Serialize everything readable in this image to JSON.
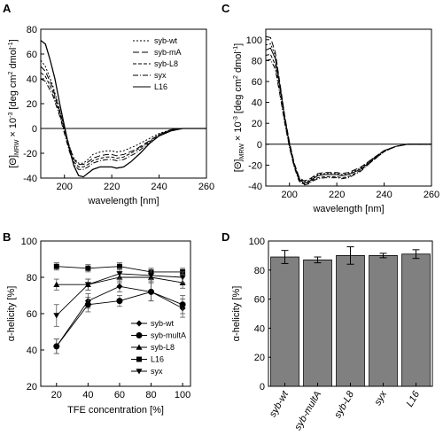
{
  "figure": {
    "panel_labels": [
      "A",
      "B",
      "C",
      "D"
    ]
  },
  "chart_data": [
    {
      "panel": "A",
      "type": "line",
      "xlabel": "wavelength [nm]",
      "ylabel_parts": [
        "[Θ]",
        "MRW",
        " × 10",
        "-3",
        " [deg cm",
        "2",
        " dmol",
        "-1",
        "]"
      ],
      "xlim": [
        190,
        260
      ],
      "ylim": [
        -40,
        80
      ],
      "xticks": [
        200,
        220,
        240,
        260
      ],
      "yticks": [
        -40,
        -20,
        0,
        20,
        40,
        60,
        80
      ],
      "zero_line": true,
      "legend_position": "top-right",
      "series": [
        {
          "name": "syb-wt",
          "dash": "2,2",
          "points": [
            [
              190,
              55
            ],
            [
              192,
              50
            ],
            [
              195,
              35
            ],
            [
              198,
              15
            ],
            [
              200,
              0
            ],
            [
              202,
              -14
            ],
            [
              204,
              -24
            ],
            [
              206,
              -28
            ],
            [
              208,
              -28
            ],
            [
              210,
              -25
            ],
            [
              212,
              -21
            ],
            [
              215,
              -19
            ],
            [
              218,
              -18
            ],
            [
              220,
              -18
            ],
            [
              222,
              -19
            ],
            [
              225,
              -18
            ],
            [
              230,
              -14
            ],
            [
              235,
              -9
            ],
            [
              240,
              -4
            ],
            [
              245,
              -1
            ],
            [
              250,
              0
            ],
            [
              260,
              0
            ]
          ]
        },
        {
          "name": "syb-mA",
          "dash": "7,3",
          "points": [
            [
              190,
              50
            ],
            [
              192,
              46
            ],
            [
              195,
              33
            ],
            [
              198,
              14
            ],
            [
              200,
              0
            ],
            [
              202,
              -14
            ],
            [
              204,
              -25
            ],
            [
              206,
              -29
            ],
            [
              208,
              -29
            ],
            [
              210,
              -27
            ],
            [
              212,
              -24
            ],
            [
              215,
              -22
            ],
            [
              218,
              -21
            ],
            [
              220,
              -21
            ],
            [
              222,
              -22
            ],
            [
              225,
              -21
            ],
            [
              230,
              -17
            ],
            [
              235,
              -11
            ],
            [
              240,
              -5
            ],
            [
              245,
              -1
            ],
            [
              250,
              0
            ],
            [
              260,
              0
            ]
          ]
        },
        {
          "name": "syb-L8",
          "dash": "4,2",
          "points": [
            [
              190,
              45
            ],
            [
              192,
              42
            ],
            [
              195,
              30
            ],
            [
              198,
              12
            ],
            [
              200,
              -2
            ],
            [
              202,
              -16
            ],
            [
              204,
              -27
            ],
            [
              206,
              -31
            ],
            [
              208,
              -31
            ],
            [
              210,
              -29
            ],
            [
              212,
              -26
            ],
            [
              215,
              -24
            ],
            [
              218,
              -23
            ],
            [
              220,
              -23
            ],
            [
              222,
              -24
            ],
            [
              225,
              -23
            ],
            [
              230,
              -18
            ],
            [
              235,
              -12
            ],
            [
              240,
              -5
            ],
            [
              245,
              -1
            ],
            [
              250,
              0
            ],
            [
              260,
              0
            ]
          ]
        },
        {
          "name": "syx",
          "dash": "6,2,1,2",
          "points": [
            [
              190,
              40
            ],
            [
              192,
              38
            ],
            [
              195,
              27
            ],
            [
              198,
              10
            ],
            [
              200,
              -4
            ],
            [
              202,
              -18
            ],
            [
              204,
              -29
            ],
            [
              206,
              -33
            ],
            [
              208,
              -33
            ],
            [
              210,
              -31
            ],
            [
              212,
              -28
            ],
            [
              215,
              -26
            ],
            [
              218,
              -25
            ],
            [
              220,
              -25
            ],
            [
              222,
              -26
            ],
            [
              225,
              -25
            ],
            [
              230,
              -20
            ],
            [
              235,
              -13
            ],
            [
              240,
              -6
            ],
            [
              245,
              -1
            ],
            [
              250,
              0
            ],
            [
              260,
              0
            ]
          ]
        },
        {
          "name": "L16",
          "dash": "",
          "points": [
            [
              190,
              71
            ],
            [
              192,
              68
            ],
            [
              194,
              55
            ],
            [
              196,
              40
            ],
            [
              198,
              20
            ],
            [
              200,
              2
            ],
            [
              202,
              -16
            ],
            [
              204,
              -30
            ],
            [
              206,
              -38
            ],
            [
              208,
              -39
            ],
            [
              210,
              -36
            ],
            [
              212,
              -33
            ],
            [
              215,
              -31
            ],
            [
              218,
              -31
            ],
            [
              220,
              -31
            ],
            [
              222,
              -32
            ],
            [
              225,
              -31
            ],
            [
              228,
              -27
            ],
            [
              232,
              -20
            ],
            [
              236,
              -12
            ],
            [
              240,
              -6
            ],
            [
              245,
              -2
            ],
            [
              250,
              0
            ],
            [
              260,
              0
            ]
          ]
        }
      ]
    },
    {
      "panel": "B",
      "type": "scatter",
      "xlabel": "TFE concentration [%]",
      "ylabel": "α-helicity [%]",
      "xlim": [
        10,
        105
      ],
      "ylim": [
        20,
        100
      ],
      "xticks": [
        20,
        40,
        60,
        80,
        100
      ],
      "yticks": [
        20,
        40,
        60,
        80,
        100
      ],
      "legend_position": "bottom-right",
      "x": [
        20,
        40,
        60,
        80,
        100
      ],
      "series": [
        {
          "name": "syb-wt",
          "marker": "diamond",
          "values": [
            42,
            67,
            75,
            72,
            63
          ],
          "errors": [
            4,
            4,
            3,
            5,
            5
          ]
        },
        {
          "name": "syb-multA",
          "marker": "circle",
          "values": [
            42,
            65,
            67,
            72,
            65
          ],
          "errors": [
            4,
            4,
            3,
            5,
            5
          ]
        },
        {
          "name": "syb-L8",
          "marker": "triangle-up",
          "values": [
            76,
            76,
            80,
            80,
            77
          ],
          "errors": [
            3,
            3,
            3,
            3,
            3
          ]
        },
        {
          "name": "L16",
          "marker": "square",
          "values": [
            86,
            85,
            86,
            83,
            83
          ],
          "errors": [
            2,
            2,
            2,
            2,
            2
          ]
        },
        {
          "name": "syx",
          "marker": "triangle-down",
          "values": [
            59,
            76,
            82,
            81,
            80
          ],
          "errors": [
            6,
            3,
            3,
            3,
            3
          ]
        }
      ]
    },
    {
      "panel": "C",
      "type": "line",
      "xlabel": "wavelength [nm]",
      "ylabel_parts": [
        "[Θ]",
        "MRW",
        " × 10",
        "-3",
        " [deg cm",
        "2",
        " dmol",
        "-1",
        "]"
      ],
      "xlim": [
        190,
        260
      ],
      "ylim": [
        -40,
        110
      ],
      "xticks": [
        200,
        220,
        240,
        260
      ],
      "yticks": [
        -40,
        -20,
        0,
        20,
        40,
        60,
        80,
        100
      ],
      "zero_line": true,
      "series": [
        {
          "dash": "",
          "points": [
            [
              190,
              90
            ],
            [
              192,
              92
            ],
            [
              194,
              82
            ],
            [
              196,
              55
            ],
            [
              198,
              25
            ],
            [
              200,
              0
            ],
            [
              202,
              -20
            ],
            [
              204,
              -33
            ],
            [
              206,
              -37
            ],
            [
              208,
              -36
            ],
            [
              210,
              -33
            ],
            [
              212,
              -30
            ],
            [
              215,
              -29
            ],
            [
              218,
              -29
            ],
            [
              220,
              -29
            ],
            [
              222,
              -30
            ],
            [
              225,
              -29
            ],
            [
              230,
              -24
            ],
            [
              235,
              -15
            ],
            [
              240,
              -6
            ],
            [
              245,
              -2
            ],
            [
              250,
              0
            ],
            [
              260,
              0
            ]
          ]
        },
        {
          "dash": "7,3",
          "points": [
            [
              190,
              103
            ],
            [
              192,
              102
            ],
            [
              194,
              88
            ],
            [
              196,
              58
            ],
            [
              198,
              27
            ],
            [
              200,
              2
            ],
            [
              202,
              -18
            ],
            [
              204,
              -31
            ],
            [
              206,
              -35
            ],
            [
              208,
              -34
            ],
            [
              210,
              -31
            ],
            [
              212,
              -28
            ],
            [
              215,
              -27
            ],
            [
              218,
              -27
            ],
            [
              220,
              -27
            ],
            [
              222,
              -28
            ],
            [
              225,
              -27
            ],
            [
              230,
              -22
            ],
            [
              235,
              -14
            ],
            [
              240,
              -6
            ],
            [
              245,
              -2
            ],
            [
              250,
              0
            ],
            [
              260,
              0
            ]
          ]
        },
        {
          "dash": "2,2",
          "points": [
            [
              190,
              95
            ],
            [
              192,
              96
            ],
            [
              194,
              85
            ],
            [
              196,
              57
            ],
            [
              198,
              26
            ],
            [
              200,
              1
            ],
            [
              202,
              -19
            ],
            [
              204,
              -32
            ],
            [
              206,
              -36
            ],
            [
              208,
              -35
            ],
            [
              210,
              -32
            ],
            [
              212,
              -29
            ],
            [
              215,
              -28
            ],
            [
              218,
              -28
            ],
            [
              220,
              -28
            ],
            [
              222,
              -29
            ],
            [
              225,
              -28
            ],
            [
              230,
              -23
            ],
            [
              235,
              -14
            ],
            [
              240,
              -6
            ],
            [
              245,
              -2
            ],
            [
              250,
              0
            ],
            [
              260,
              0
            ]
          ]
        },
        {
          "dash": "4,2",
          "points": [
            [
              190,
              85
            ],
            [
              192,
              86
            ],
            [
              194,
              76
            ],
            [
              196,
              50
            ],
            [
              198,
              22
            ],
            [
              200,
              -2
            ],
            [
              202,
              -21
            ],
            [
              204,
              -34
            ],
            [
              206,
              -38
            ],
            [
              208,
              -37
            ],
            [
              210,
              -34
            ],
            [
              212,
              -32
            ],
            [
              215,
              -31
            ],
            [
              218,
              -31
            ],
            [
              220,
              -31
            ],
            [
              222,
              -32
            ],
            [
              225,
              -31
            ],
            [
              230,
              -25
            ],
            [
              235,
              -16
            ],
            [
              240,
              -7
            ],
            [
              245,
              -2
            ],
            [
              250,
              0
            ],
            [
              260,
              0
            ]
          ]
        },
        {
          "dash": "6,2,1,2",
          "points": [
            [
              190,
              80
            ],
            [
              192,
              81
            ],
            [
              194,
              72
            ],
            [
              196,
              47
            ],
            [
              198,
              20
            ],
            [
              200,
              -3
            ],
            [
              202,
              -22
            ],
            [
              204,
              -35
            ],
            [
              206,
              -39
            ],
            [
              208,
              -38
            ],
            [
              210,
              -35
            ],
            [
              212,
              -33
            ],
            [
              215,
              -32
            ],
            [
              218,
              -32
            ],
            [
              220,
              -32
            ],
            [
              222,
              -33
            ],
            [
              225,
              -32
            ],
            [
              230,
              -26
            ],
            [
              235,
              -16
            ],
            [
              240,
              -7
            ],
            [
              245,
              -2
            ],
            [
              250,
              0
            ],
            [
              260,
              0
            ]
          ]
        }
      ]
    },
    {
      "panel": "D",
      "type": "bar",
      "ylabel": "α-helicity [%]",
      "ylim": [
        0,
        100
      ],
      "yticks": [
        0,
        20,
        40,
        60,
        80,
        100
      ],
      "categories": [
        "syb-wt",
        "syb-multA",
        "syb-L8",
        "syx",
        "L16"
      ],
      "values": [
        89,
        87,
        90,
        90,
        91
      ],
      "errors": [
        4.5,
        2,
        6,
        1.5,
        3
      ],
      "bar_color": "#808080"
    }
  ]
}
